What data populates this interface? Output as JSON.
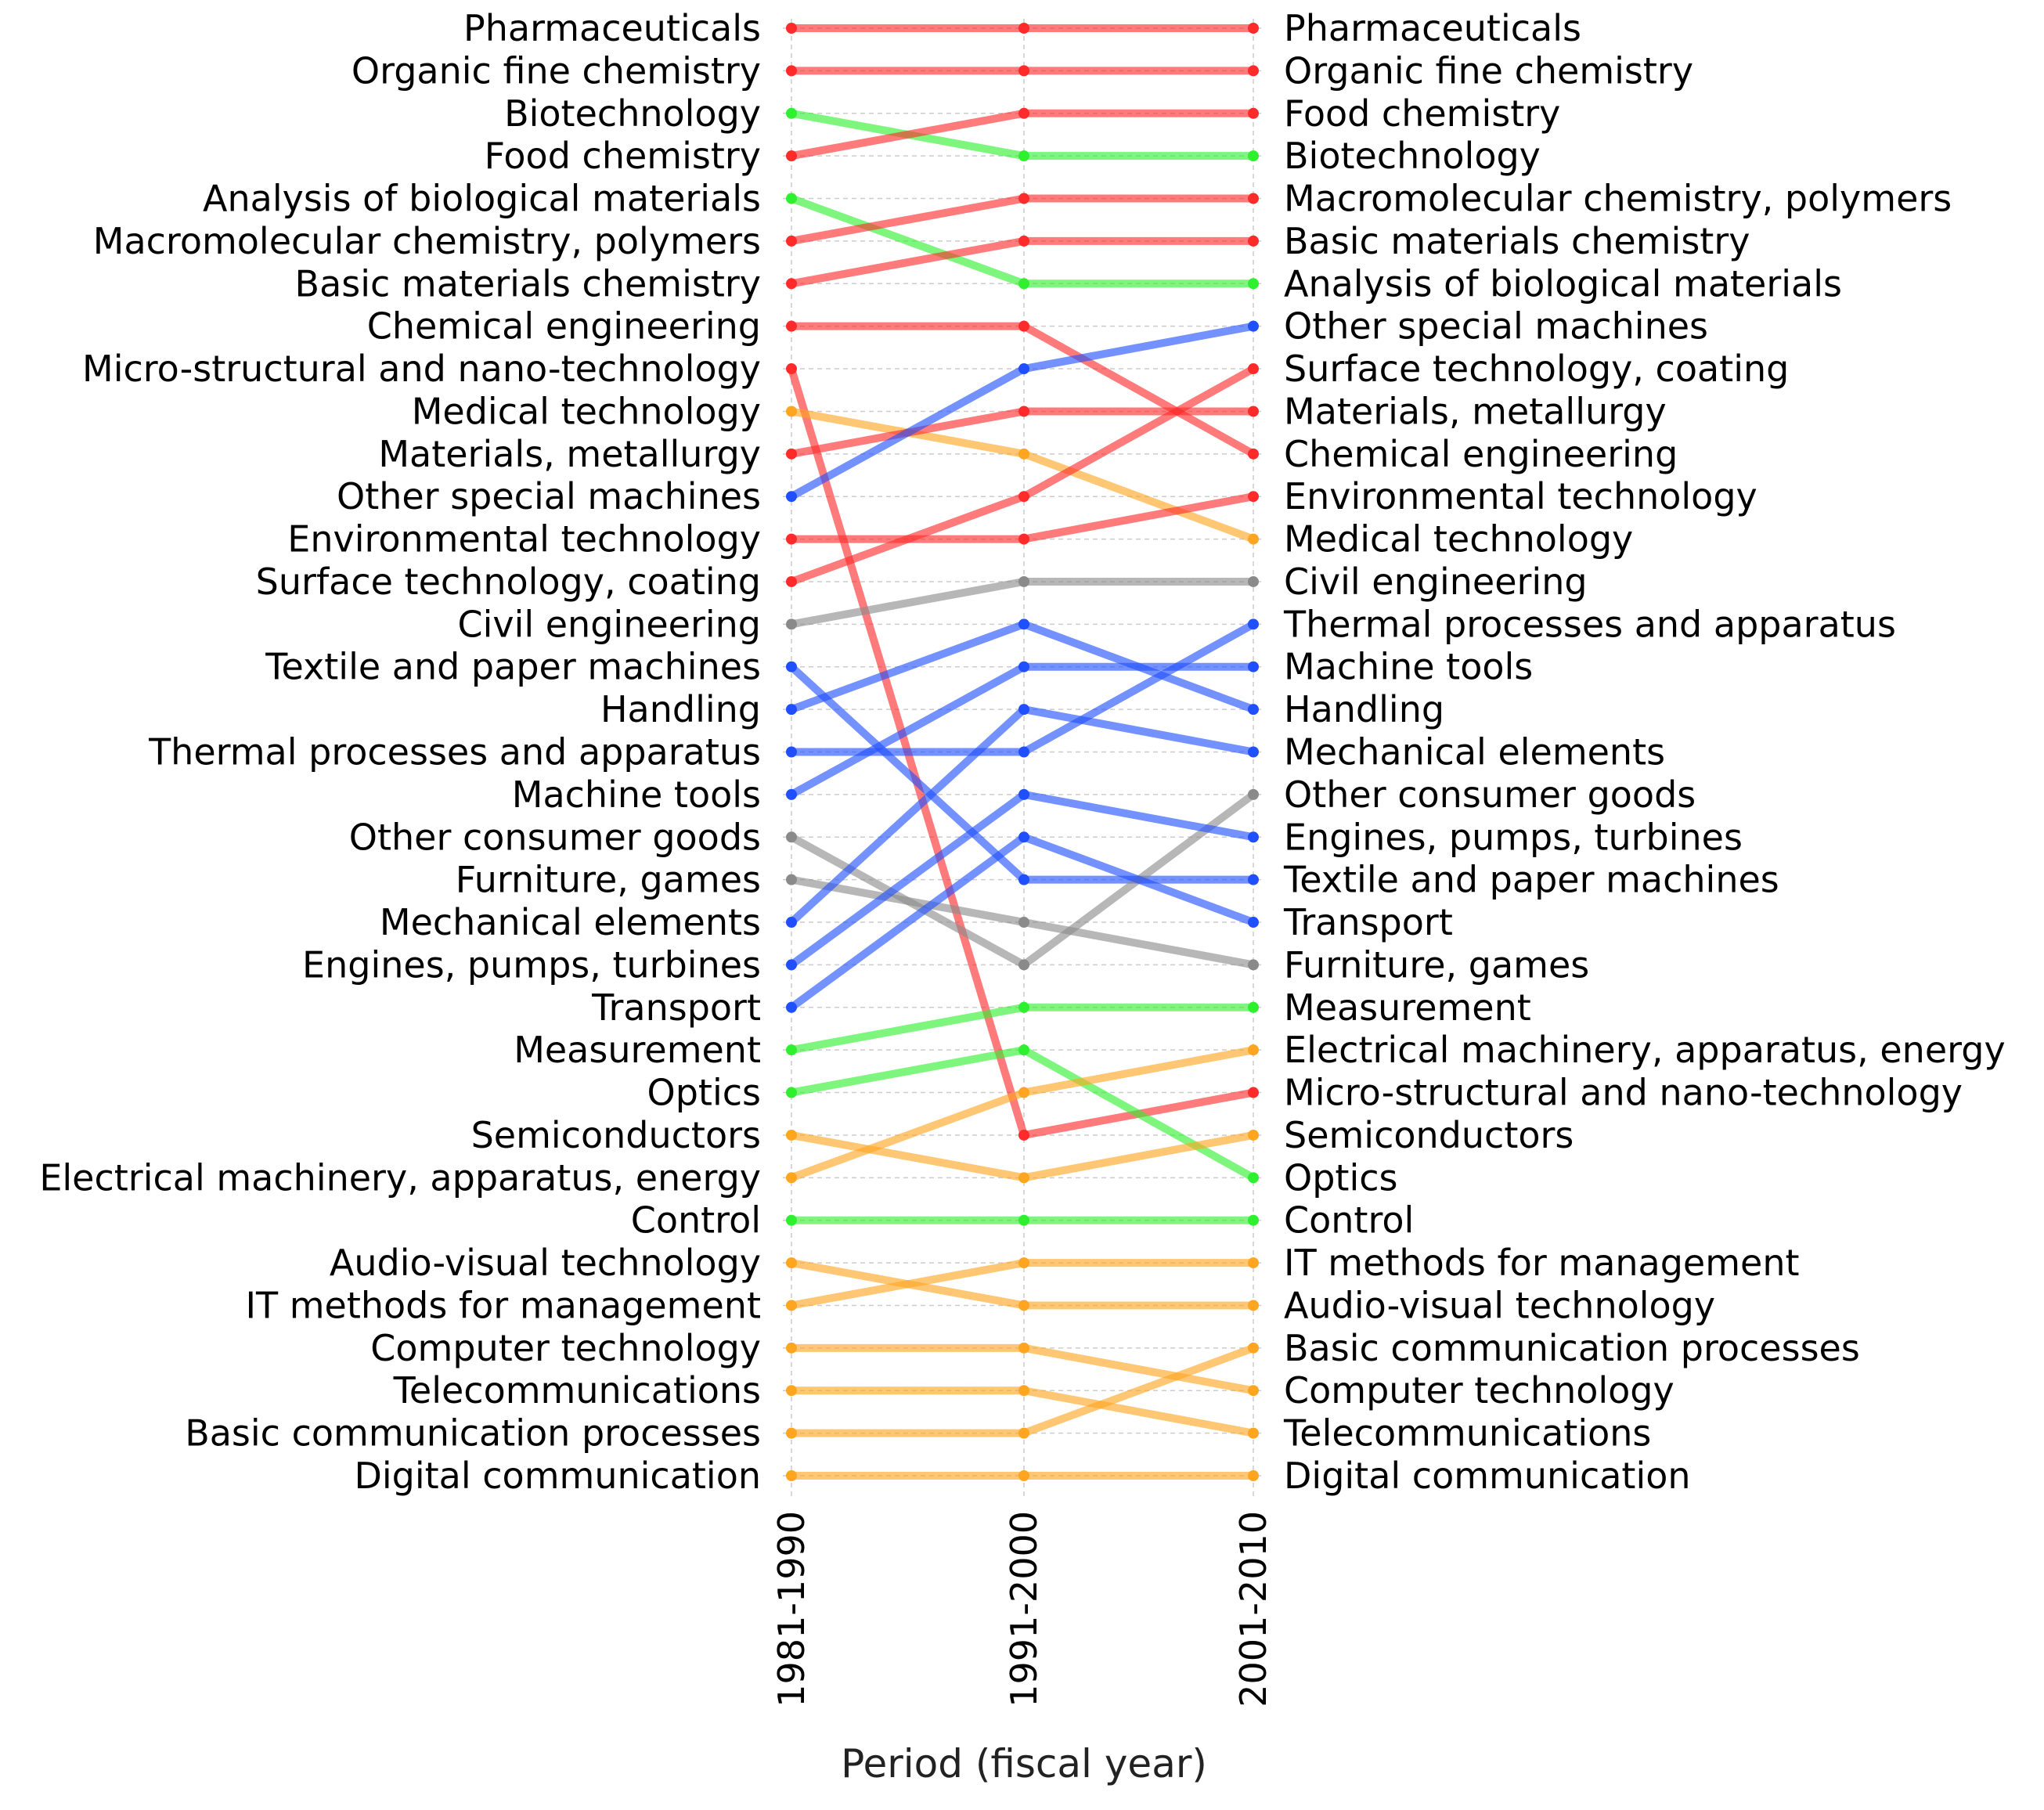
{
  "chart_data": {
    "type": "line",
    "chart_subtype": "bump",
    "xlabel": "Period (fiscal year)",
    "ylabel": "",
    "x": [
      "1981-1990",
      "1991-2000",
      "2001-2010"
    ],
    "y_axis": "rank",
    "ylim": [
      1,
      35
    ],
    "grid": true,
    "legend": "none",
    "colors": {
      "red": "#ff2a2a",
      "green": "#2ef02e",
      "blue": "#1f4fff",
      "orange": "#ffa51f",
      "gray": "#8a8a8a"
    },
    "left_labels": [
      "Pharmaceuticals",
      "Organic fine chemistry",
      "Biotechnology",
      "Food chemistry",
      "Analysis of biological materials",
      "Macromolecular chemistry, polymers",
      "Basic materials chemistry",
      "Chemical engineering",
      "Micro-structural and nano-technology",
      "Medical technology",
      "Materials, metallurgy",
      "Other special machines",
      "Environmental technology",
      "Surface technology, coating",
      "Civil engineering",
      "Textile and paper machines",
      "Handling",
      "Thermal processes and apparatus",
      "Machine tools",
      "Other consumer goods",
      "Furniture, games",
      "Mechanical elements",
      "Engines, pumps, turbines",
      "Transport",
      "Measurement",
      "Optics",
      "Semiconductors",
      "Electrical machinery, apparatus, energy",
      "Control",
      "Audio-visual technology",
      "IT methods for management",
      "Computer technology",
      "Telecommunications",
      "Basic communication processes",
      "Digital communication"
    ],
    "right_labels": [
      "Pharmaceuticals",
      "Organic fine chemistry",
      "Food chemistry",
      "Biotechnology",
      "Macromolecular chemistry, polymers",
      "Basic materials chemistry",
      "Analysis of biological materials",
      "Other special machines",
      "Surface technology, coating",
      "Materials, metallurgy",
      "Chemical engineering",
      "Environmental technology",
      "Medical technology",
      "Civil engineering",
      "Thermal processes and apparatus",
      "Machine tools",
      "Handling",
      "Mechanical elements",
      "Other consumer goods",
      "Engines, pumps, turbines",
      "Textile and paper machines",
      "Transport",
      "Furniture, games",
      "Measurement",
      "Electrical machinery, apparatus, energy",
      "Micro-structural and nano-technology",
      "Semiconductors",
      "Optics",
      "Control",
      "IT methods for management",
      "Audio-visual technology",
      "Basic communication processes",
      "Computer technology",
      "Telecommunications",
      "Digital communication"
    ],
    "series": [
      {
        "name": "Pharmaceuticals",
        "group": "red",
        "values": [
          1,
          1,
          1
        ]
      },
      {
        "name": "Organic fine chemistry",
        "group": "red",
        "values": [
          2,
          2,
          2
        ]
      },
      {
        "name": "Biotechnology",
        "group": "green",
        "values": [
          3,
          4,
          4
        ]
      },
      {
        "name": "Food chemistry",
        "group": "red",
        "values": [
          4,
          3,
          3
        ]
      },
      {
        "name": "Analysis of biological materials",
        "group": "green",
        "values": [
          5,
          7,
          7
        ]
      },
      {
        "name": "Macromolecular chemistry, polymers",
        "group": "red",
        "values": [
          6,
          5,
          5
        ]
      },
      {
        "name": "Basic materials chemistry",
        "group": "red",
        "values": [
          7,
          6,
          6
        ]
      },
      {
        "name": "Chemical engineering",
        "group": "red",
        "values": [
          8,
          8,
          11
        ]
      },
      {
        "name": "Micro-structural and nano-technology",
        "group": "red",
        "values": [
          9,
          27,
          26
        ]
      },
      {
        "name": "Medical technology",
        "group": "orange",
        "values": [
          10,
          11,
          13
        ]
      },
      {
        "name": "Materials, metallurgy",
        "group": "red",
        "values": [
          11,
          10,
          10
        ]
      },
      {
        "name": "Other special machines",
        "group": "blue",
        "values": [
          12,
          9,
          8
        ]
      },
      {
        "name": "Environmental technology",
        "group": "red",
        "values": [
          13,
          13,
          12
        ]
      },
      {
        "name": "Surface technology, coating",
        "group": "red",
        "values": [
          14,
          12,
          9
        ]
      },
      {
        "name": "Civil engineering",
        "group": "gray",
        "values": [
          15,
          14,
          14
        ]
      },
      {
        "name": "Textile and paper machines",
        "group": "blue",
        "values": [
          16,
          21,
          21
        ]
      },
      {
        "name": "Handling",
        "group": "blue",
        "values": [
          17,
          15,
          17
        ]
      },
      {
        "name": "Thermal processes and apparatus",
        "group": "blue",
        "values": [
          18,
          18,
          15
        ]
      },
      {
        "name": "Machine tools",
        "group": "blue",
        "values": [
          19,
          16,
          16
        ]
      },
      {
        "name": "Other consumer goods",
        "group": "gray",
        "values": [
          20,
          23,
          19
        ]
      },
      {
        "name": "Furniture, games",
        "group": "gray",
        "values": [
          21,
          22,
          23
        ]
      },
      {
        "name": "Mechanical elements",
        "group": "blue",
        "values": [
          22,
          17,
          18
        ]
      },
      {
        "name": "Engines, pumps, turbines",
        "group": "blue",
        "values": [
          23,
          19,
          20
        ]
      },
      {
        "name": "Transport",
        "group": "blue",
        "values": [
          24,
          20,
          22
        ]
      },
      {
        "name": "Measurement",
        "group": "green",
        "values": [
          25,
          24,
          24
        ]
      },
      {
        "name": "Optics",
        "group": "green",
        "values": [
          26,
          25,
          28
        ]
      },
      {
        "name": "Semiconductors",
        "group": "orange",
        "values": [
          27,
          28,
          27
        ]
      },
      {
        "name": "Electrical machinery, apparatus, energy",
        "group": "orange",
        "values": [
          28,
          26,
          25
        ]
      },
      {
        "name": "Control",
        "group": "green",
        "values": [
          29,
          29,
          29
        ]
      },
      {
        "name": "Audio-visual technology",
        "group": "orange",
        "values": [
          30,
          31,
          31
        ]
      },
      {
        "name": "IT methods for management",
        "group": "orange",
        "values": [
          31,
          30,
          30
        ]
      },
      {
        "name": "Computer technology",
        "group": "orange",
        "values": [
          32,
          32,
          33
        ]
      },
      {
        "name": "Telecommunications",
        "group": "orange",
        "values": [
          33,
          33,
          34
        ]
      },
      {
        "name": "Basic communication processes",
        "group": "orange",
        "values": [
          34,
          34,
          32
        ]
      },
      {
        "name": "Digital communication",
        "group": "orange",
        "values": [
          35,
          35,
          35
        ]
      }
    ]
  }
}
